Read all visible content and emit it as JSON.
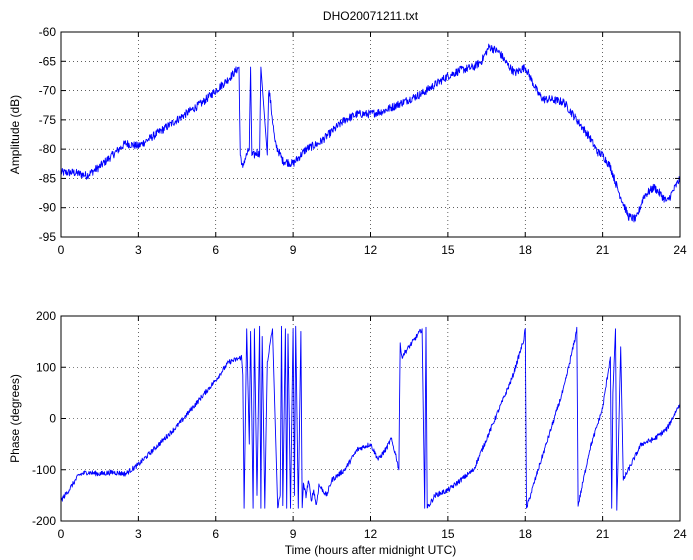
{
  "figure": {
    "background": "#ffffff",
    "line_color": "#0000ff"
  },
  "chart_data": [
    {
      "type": "line",
      "title": "DHO20071211.txt",
      "xlabel": "",
      "ylabel": "Amplitude (dB)",
      "xlim": [
        0,
        24
      ],
      "ylim": [
        -95,
        -60
      ],
      "xticks": [
        0,
        3,
        6,
        9,
        12,
        15,
        18,
        21,
        24
      ],
      "yticks": [
        -95,
        -90,
        -85,
        -80,
        -75,
        -70,
        -65,
        -60
      ],
      "grid": "dotted",
      "series": [
        {
          "color": "#0000ff",
          "noise": 0.7,
          "x": [
            0,
            0.5,
            1.0,
            1.5,
            2.0,
            2.5,
            3.0,
            3.5,
            4.0,
            4.5,
            5.0,
            5.5,
            6.0,
            6.5,
            6.9,
            6.95,
            7.0,
            7.05,
            7.1,
            7.2,
            7.3,
            7.35,
            7.4,
            7.5,
            7.6,
            7.7,
            7.75,
            8.0,
            8.05,
            8.1,
            8.15,
            8.3,
            8.6,
            9.0,
            9.5,
            10.0,
            10.5,
            11.0,
            11.5,
            12.0,
            12.5,
            13.0,
            13.5,
            14.0,
            14.5,
            15.0,
            15.5,
            16.0,
            16.3,
            16.6,
            17.0,
            17.3,
            17.6,
            18.0,
            18.5,
            18.7,
            19.0,
            19.5,
            20.0,
            20.5,
            20.8,
            21.0,
            21.3,
            21.6,
            22.0,
            22.3,
            22.6,
            23.0,
            23.5,
            24.0
          ],
          "y": [
            -84,
            -84,
            -84.5,
            -83,
            -81,
            -79,
            -79.5,
            -78,
            -76.5,
            -75,
            -73.5,
            -72,
            -70,
            -68,
            -66,
            -81,
            -82,
            -83.5,
            -82,
            -81,
            -80,
            -66,
            -81,
            -81,
            -80.5,
            -81,
            -66,
            -81,
            -70,
            -71,
            -73,
            -79,
            -82,
            -82.5,
            -80,
            -79,
            -77,
            -75,
            -74,
            -74,
            -73.5,
            -72.5,
            -71.5,
            -70.5,
            -69,
            -67.5,
            -66.5,
            -66,
            -65,
            -62.5,
            -63.5,
            -65.5,
            -67,
            -66,
            -70.5,
            -71.5,
            -71.5,
            -72,
            -75,
            -78,
            -80.5,
            -81,
            -83,
            -87,
            -91.5,
            -92,
            -88,
            -86.5,
            -89,
            -85
          ]
        }
      ]
    },
    {
      "type": "line",
      "title": "",
      "xlabel": "Time (hours after midnight UTC)",
      "ylabel": "Phase (degrees)",
      "xlim": [
        0,
        24
      ],
      "ylim": [
        -200,
        200
      ],
      "xticks": [
        0,
        3,
        6,
        9,
        12,
        15,
        18,
        21,
        24
      ],
      "yticks": [
        -200,
        -100,
        0,
        100,
        200
      ],
      "grid": "dotted",
      "series": [
        {
          "color": "#0000ff",
          "noise": 5,
          "x": [
            0,
            0.3,
            0.7,
            1.0,
            1.5,
            2.0,
            2.5,
            3.0,
            3.5,
            4.0,
            4.5,
            5.0,
            5.5,
            6.0,
            6.5,
            6.9,
            7.0,
            7.05,
            7.1,
            7.2,
            7.3,
            7.35,
            7.45,
            7.5,
            7.6,
            7.7,
            7.75,
            7.8,
            7.9,
            8.0,
            8.2,
            8.4,
            8.5,
            8.55,
            8.6,
            8.7,
            8.75,
            8.8,
            8.9,
            9.0,
            9.05,
            9.1,
            9.2,
            9.3,
            9.35,
            9.4,
            9.5,
            9.6,
            9.7,
            9.8,
            9.9,
            10.0,
            10.3,
            10.5,
            11.0,
            11.5,
            12.0,
            12.3,
            12.6,
            12.8,
            13.0,
            13.1,
            13.15,
            13.2,
            13.5,
            14.0,
            14.1,
            14.15,
            14.2,
            14.5,
            15.0,
            15.5,
            16.0,
            16.5,
            17.0,
            17.5,
            17.95,
            18.0,
            18.05,
            18.5,
            19.0,
            19.5,
            19.95,
            20.0,
            20.05,
            20.5,
            21.0,
            21.3,
            21.35,
            21.4,
            21.5,
            21.55,
            21.6,
            21.7,
            21.8,
            22.0,
            22.5,
            23.0,
            23.5,
            24.0
          ],
          "y": [
            -160,
            -140,
            -110,
            -105,
            -108,
            -105,
            -108,
            -90,
            -65,
            -40,
            -15,
            15,
            45,
            75,
            110,
            117,
            120,
            85,
            -175,
            175,
            -50,
            170,
            -175,
            175,
            -150,
            180,
            -175,
            160,
            -175,
            110,
            175,
            -175,
            -150,
            180,
            -170,
            175,
            -175,
            165,
            -175,
            175,
            -150,
            180,
            -175,
            170,
            -170,
            -130,
            -150,
            -120,
            -160,
            -140,
            -170,
            -130,
            -150,
            -120,
            -100,
            -60,
            -50,
            -80,
            -60,
            -40,
            -75,
            -100,
            150,
            120,
            140,
            175,
            -175,
            178,
            -175,
            -150,
            -140,
            -120,
            -100,
            -40,
            20,
            80,
            155,
            175,
            -175,
            -100,
            -20,
            60,
            160,
            178,
            -170,
            -60,
            20,
            120,
            -175,
            50,
            175,
            -175,
            -80,
            140,
            -120,
            -100,
            -50,
            -40,
            -20,
            30
          ]
        }
      ]
    }
  ]
}
